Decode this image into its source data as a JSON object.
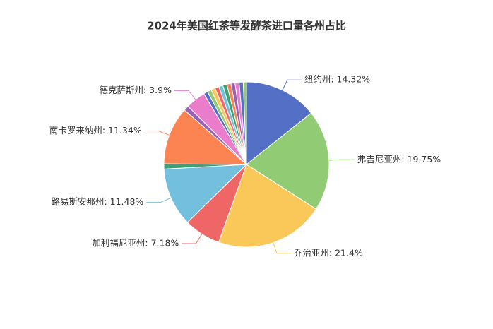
{
  "chart_data": {
    "type": "pie",
    "title": "2024年美国红茶等发酵茶进口量各州占比",
    "values": [
      14.32,
      19.75,
      21.4,
      7.18,
      11.48,
      1.0,
      11.34,
      1.0,
      3.9,
      0.8,
      0.8,
      0.8,
      0.8,
      0.8,
      0.8,
      0.8,
      0.8,
      0.8,
      0.8,
      0.63
    ],
    "value_labels": [
      "纽约州: 14.32%",
      "弗吉尼亚州: 19.75%",
      "乔治亚州: 21.4%",
      "加利福尼亚州: 7.18%",
      "路易斯安那州: 11.48%",
      null,
      "南卡罗来纳州: 11.34%",
      null,
      "德克萨斯州: 3.9%",
      null,
      null,
      null,
      null,
      null,
      null,
      null,
      null,
      null,
      null,
      null
    ],
    "colors": [
      "#5470c6",
      "#91cc75",
      "#fac858",
      "#ee6666",
      "#73c0de",
      "#3ba272",
      "#fc8452",
      "#9a60b4",
      "#ea7ccc"
    ]
  }
}
